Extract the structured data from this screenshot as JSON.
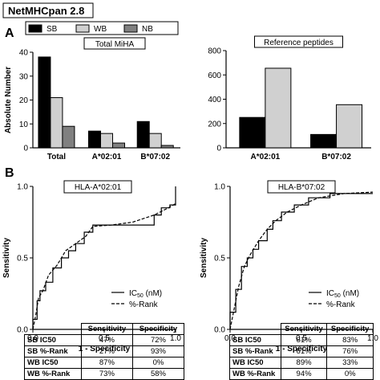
{
  "header": {
    "title": "NetMHCpan 2.8"
  },
  "legend": {
    "items": [
      {
        "label": "SB",
        "color": "#000000"
      },
      {
        "label": "WB",
        "color": "#d0d0d0"
      },
      {
        "label": "NB",
        "color": "#808080"
      }
    ]
  },
  "panels": {
    "a": "A",
    "b": "B"
  },
  "roc_legend": {
    "ic50_main": "IC",
    "ic50_sub": "50",
    "ic50_tail": " (nM)",
    "rank": "%-Rank"
  },
  "chart_data": [
    {
      "id": "total-miha",
      "type": "bar",
      "title": "Total MiHA",
      "ylabel": "Absolute Number",
      "xlabel": "",
      "ylim": [
        0,
        40
      ],
      "yticks": [
        0,
        10,
        20,
        30,
        40
      ],
      "categories": [
        "Total",
        "A*02:01",
        "B*07:02"
      ],
      "series": [
        {
          "name": "SB",
          "color": "#000000",
          "values": [
            38,
            7,
            11
          ]
        },
        {
          "name": "WB",
          "color": "#d0d0d0",
          "values": [
            21,
            6,
            6
          ]
        },
        {
          "name": "NB",
          "color": "#808080",
          "values": [
            9,
            2,
            1
          ]
        }
      ]
    },
    {
      "id": "reference-peptides",
      "type": "bar",
      "title": "Reference peptides",
      "ylabel": "",
      "xlabel": "",
      "ylim": [
        0,
        800
      ],
      "yticks": [
        0,
        200,
        400,
        600,
        800
      ],
      "categories": [
        "A*02:01",
        "B*07:02"
      ],
      "series": [
        {
          "name": "SB",
          "color": "#000000",
          "values": [
            250,
            110
          ]
        },
        {
          "name": "WB",
          "color": "#d0d0d0",
          "values": [
            655,
            355
          ]
        }
      ]
    },
    {
      "id": "roc-a0201",
      "type": "line",
      "title": "HLA-A*02:01",
      "xlabel": "1 - Specificity",
      "ylabel": "Sensitivity",
      "xlim": [
        0,
        1
      ],
      "ylim": [
        0,
        1
      ],
      "xticks": [
        "0.0",
        "0.5",
        "1.0"
      ],
      "yticks": [
        "0.0",
        "0.5",
        "1.0"
      ],
      "series": [
        {
          "name": "IC50 (nM)",
          "style": "solid",
          "points": [
            [
              0,
              0
            ],
            [
              0,
              0.07
            ],
            [
              0.03,
              0.07
            ],
            [
              0.03,
              0.2
            ],
            [
              0.05,
              0.2
            ],
            [
              0.05,
              0.27
            ],
            [
              0.09,
              0.27
            ],
            [
              0.09,
              0.33
            ],
            [
              0.14,
              0.33
            ],
            [
              0.14,
              0.43
            ],
            [
              0.2,
              0.43
            ],
            [
              0.2,
              0.5
            ],
            [
              0.25,
              0.5
            ],
            [
              0.25,
              0.55
            ],
            [
              0.3,
              0.55
            ],
            [
              0.3,
              0.6
            ],
            [
              0.36,
              0.6
            ],
            [
              0.36,
              0.68
            ],
            [
              0.42,
              0.68
            ],
            [
              0.42,
              0.73
            ],
            [
              0.85,
              0.73
            ],
            [
              0.85,
              0.8
            ],
            [
              0.9,
              0.8
            ],
            [
              0.9,
              0.85
            ],
            [
              0.96,
              0.85
            ],
            [
              0.96,
              0.87
            ],
            [
              1,
              0.87
            ],
            [
              1,
              1
            ]
          ]
        },
        {
          "name": "%-Rank",
          "style": "dashed",
          "points": [
            [
              0,
              0
            ],
            [
              0.02,
              0.1
            ],
            [
              0.04,
              0.22
            ],
            [
              0.07,
              0.27
            ],
            [
              0.11,
              0.38
            ],
            [
              0.17,
              0.45
            ],
            [
              0.23,
              0.55
            ],
            [
              0.3,
              0.6
            ],
            [
              0.37,
              0.65
            ],
            [
              0.42,
              0.72
            ],
            [
              0.55,
              0.73
            ],
            [
              0.7,
              0.75
            ],
            [
              0.85,
              0.8
            ],
            [
              0.95,
              0.85
            ],
            [
              1,
              0.88
            ]
          ]
        }
      ]
    },
    {
      "id": "roc-b0702",
      "type": "line",
      "title": "HLA-B*07:02",
      "xlabel": "1 - Specificity",
      "ylabel": "Sensitivity",
      "xlim": [
        0,
        1
      ],
      "ylim": [
        0,
        1
      ],
      "xticks": [
        "0.0",
        "0.5",
        "1.0"
      ],
      "yticks": [
        "0.0",
        "0.5",
        "1.0"
      ],
      "series": [
        {
          "name": "IC50 (nM)",
          "style": "solid",
          "points": [
            [
              0,
              0
            ],
            [
              0,
              0.12
            ],
            [
              0.04,
              0.12
            ],
            [
              0.04,
              0.28
            ],
            [
              0.08,
              0.28
            ],
            [
              0.08,
              0.44
            ],
            [
              0.12,
              0.44
            ],
            [
              0.12,
              0.5
            ],
            [
              0.16,
              0.5
            ],
            [
              0.16,
              0.56
            ],
            [
              0.2,
              0.56
            ],
            [
              0.2,
              0.62
            ],
            [
              0.26,
              0.62
            ],
            [
              0.26,
              0.7
            ],
            [
              0.3,
              0.7
            ],
            [
              0.3,
              0.76
            ],
            [
              0.36,
              0.76
            ],
            [
              0.36,
              0.82
            ],
            [
              0.45,
              0.82
            ],
            [
              0.45,
              0.87
            ],
            [
              0.55,
              0.87
            ],
            [
              0.55,
              0.92
            ],
            [
              0.7,
              0.92
            ],
            [
              0.7,
              0.95
            ],
            [
              1,
              0.95
            ]
          ]
        },
        {
          "name": "%-Rank",
          "style": "dashed",
          "points": [
            [
              0,
              0
            ],
            [
              0.03,
              0.15
            ],
            [
              0.06,
              0.3
            ],
            [
              0.1,
              0.44
            ],
            [
              0.14,
              0.52
            ],
            [
              0.2,
              0.62
            ],
            [
              0.26,
              0.7
            ],
            [
              0.32,
              0.76
            ],
            [
              0.4,
              0.82
            ],
            [
              0.5,
              0.87
            ],
            [
              0.62,
              0.92
            ],
            [
              0.8,
              0.95
            ],
            [
              1,
              0.96
            ]
          ]
        }
      ]
    }
  ],
  "tables": [
    {
      "columns": [
        "",
        "Sensitivity",
        "Specificity"
      ],
      "rows": [
        {
          "label": "SB IC50",
          "cells": [
            "47%",
            "72%"
          ]
        },
        {
          "label": "SB %-Rank",
          "cells": [
            "27%",
            "93%"
          ]
        },
        {
          "label": "WB IC50",
          "cells": [
            "87%",
            "0%"
          ]
        },
        {
          "label": "WB %-Rank",
          "cells": [
            "73%",
            "58%"
          ]
        }
      ]
    },
    {
      "columns": [
        "",
        "Sensitivity",
        "Specificity"
      ],
      "rows": [
        {
          "label": "SB IC50",
          "cells": [
            "61%",
            "83%"
          ]
        },
        {
          "label": "SB %-Rank",
          "cells": [
            "61%",
            "76%"
          ]
        },
        {
          "label": "WB IC50",
          "cells": [
            "89%",
            "33%"
          ]
        },
        {
          "label": "WB %-Rank",
          "cells": [
            "94%",
            "0%"
          ]
        }
      ]
    }
  ]
}
